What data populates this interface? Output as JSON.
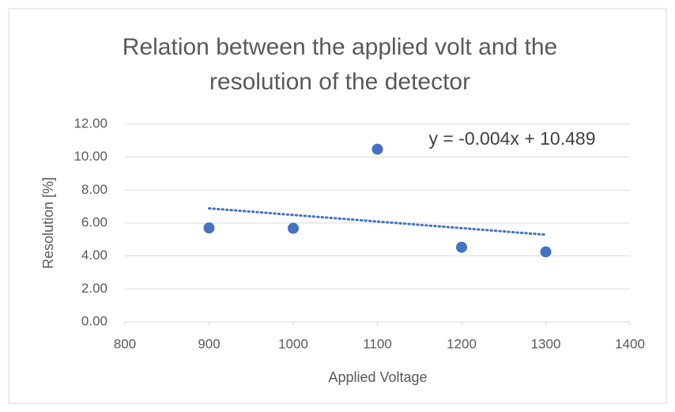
{
  "chart_data": {
    "type": "scatter",
    "title": "Relation between the applied volt and the resolution of the detector",
    "x_label": "Applied Voltage",
    "y_label": "Resolution [%]",
    "series": [
      {
        "color": "#4472c4",
        "x": [
          900,
          1000,
          1100,
          1200,
          1300
        ],
        "values": [
          5.7,
          5.68,
          10.48,
          4.53,
          4.25
        ]
      }
    ],
    "trendline": {
      "label": "y = -0.004x + 10.489",
      "slope": -0.004,
      "intercept": 10.489,
      "color": "#4472c4"
    },
    "xlim": [
      800,
      1400
    ],
    "xticks": [
      800,
      900,
      1000,
      1100,
      1200,
      1300,
      1400
    ],
    "ylim": [
      0,
      12
    ],
    "yticks": [
      {
        "value": 0,
        "label": "0.00"
      },
      {
        "value": 2,
        "label": "2.00"
      },
      {
        "value": 4,
        "label": "4.00"
      },
      {
        "value": 6,
        "label": "6.00"
      },
      {
        "value": 8,
        "label": "8.00"
      },
      {
        "value": 10,
        "label": "10.00"
      },
      {
        "value": 12,
        "label": "12.00"
      }
    ],
    "grid": true
  }
}
